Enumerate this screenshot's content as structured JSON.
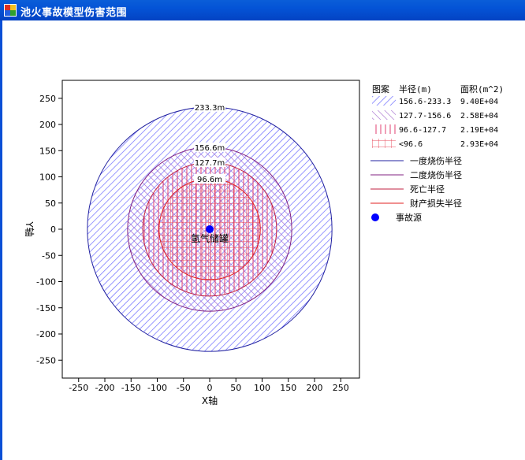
{
  "window": {
    "title": "池火事故模型伤害范围"
  },
  "legend": {
    "header_pattern": "图案",
    "header_radius": "半径(m)",
    "header_area": "面积(m^2)",
    "zones": [
      {
        "range": "156.6-233.3",
        "area": "9.40E+04",
        "pattern": "diag-blue"
      },
      {
        "range": "127.7-156.6",
        "area": "2.58E+04",
        "pattern": "diag-purple"
      },
      {
        "range": "96.6-127.7",
        "area": "2.19E+04",
        "pattern": "vert-red"
      },
      {
        "range": "<96.6",
        "area": "2.93E+04",
        "pattern": "grid-red"
      }
    ],
    "lines": [
      {
        "label": "一度烧伤半径",
        "color": "#2020a0"
      },
      {
        "label": "二度烧伤半径",
        "color": "#802080"
      },
      {
        "label": "死亡半径",
        "color": "#c02040"
      },
      {
        "label": "财产损失半径",
        "color": "#e02020"
      }
    ],
    "source_label": "事故源"
  },
  "chart_data": {
    "type": "scatter",
    "xlabel": "X轴",
    "ylabel": "Y轴",
    "xlim": [
      -280,
      280
    ],
    "ylim": [
      -280,
      280
    ],
    "xticks": [
      -250,
      -200,
      -150,
      -100,
      -50,
      0,
      50,
      100,
      150,
      200,
      250
    ],
    "yticks": [
      250,
      200,
      150,
      100,
      50,
      0,
      -50,
      -100,
      -150,
      -200,
      -250
    ],
    "grid": false,
    "circles": [
      {
        "name": "一度烧伤半径",
        "radius": 233.3,
        "label": "233.3m",
        "color": "#2020a0",
        "fill": "diag-blue"
      },
      {
        "name": "二度烧伤半径",
        "radius": 156.6,
        "label": "156.6m",
        "color": "#802080",
        "fill": "diag-purple"
      },
      {
        "name": "死亡半径",
        "radius": 127.7,
        "label": "127.7m",
        "color": "#c02040",
        "fill": "vert-red"
      },
      {
        "name": "财产损失半径",
        "radius": 96.6,
        "label": "96.6m",
        "color": "#e02020",
        "fill": "grid-red"
      }
    ],
    "source": {
      "x": 0,
      "y": 0,
      "label": "氢气储罐",
      "color": "#0000ff"
    }
  }
}
